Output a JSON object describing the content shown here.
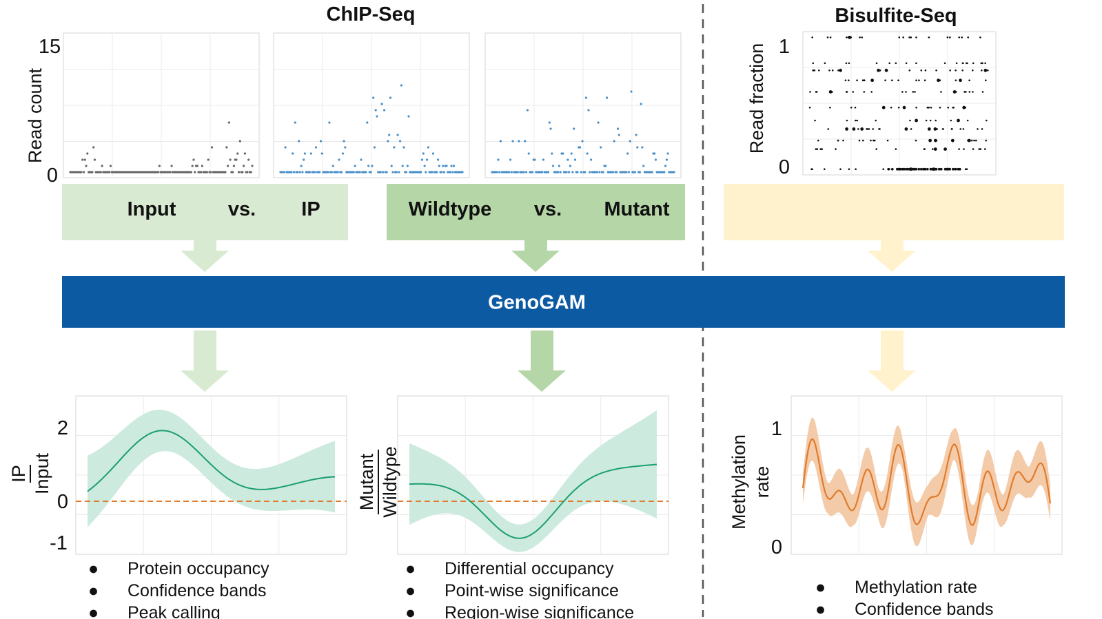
{
  "headers": {
    "chip": "ChIP-Seq",
    "bisulfite": "Bisulfite-Seq"
  },
  "top_axes": {
    "chip_ylabel": "Read count",
    "chip_ymax": "15",
    "chip_ymin": "0",
    "bs_ylabel": "Read fraction",
    "bs_ymax": "1",
    "bs_ymin": "0"
  },
  "bands": {
    "left": {
      "a": "Input",
      "vs": "vs.",
      "b": "IP",
      "color": "#d9ead3"
    },
    "mid": {
      "a": "Wildtype",
      "vs": "vs.",
      "b": "Mutant",
      "color": "#b5d6a7"
    },
    "right": {
      "color": "#fff2cc"
    }
  },
  "genogam": {
    "label": "GenoGAM",
    "color": "#0b5aa2"
  },
  "bottom_axes": {
    "left_ticks": [
      "2",
      "0",
      "-1"
    ],
    "left_num": "IP",
    "left_den": "Input",
    "mid_num": "Mutant",
    "mid_den": "Wildtype",
    "right_ylabel_1": "Methylation",
    "right_ylabel_2": "rate",
    "right_ticks": [
      "1",
      "0"
    ]
  },
  "bullets": {
    "left": [
      "Protein occupancy",
      "Confidence bands",
      "Peak calling"
    ],
    "mid": [
      "Differential occupancy",
      "Point-wise significance",
      "Region-wise significance"
    ],
    "right": [
      "Methylation rate",
      "Confidence bands"
    ]
  },
  "bullet_glyph": "●",
  "colors": {
    "fit_green": "#1a9e73",
    "band_green": "#cdeadf",
    "fit_orange": "#e07b2c",
    "band_orange": "#f4cba9",
    "dashed_zero": "#e07b2c",
    "dot_gray": "#666666",
    "dot_blue": "#4a90c9"
  }
}
